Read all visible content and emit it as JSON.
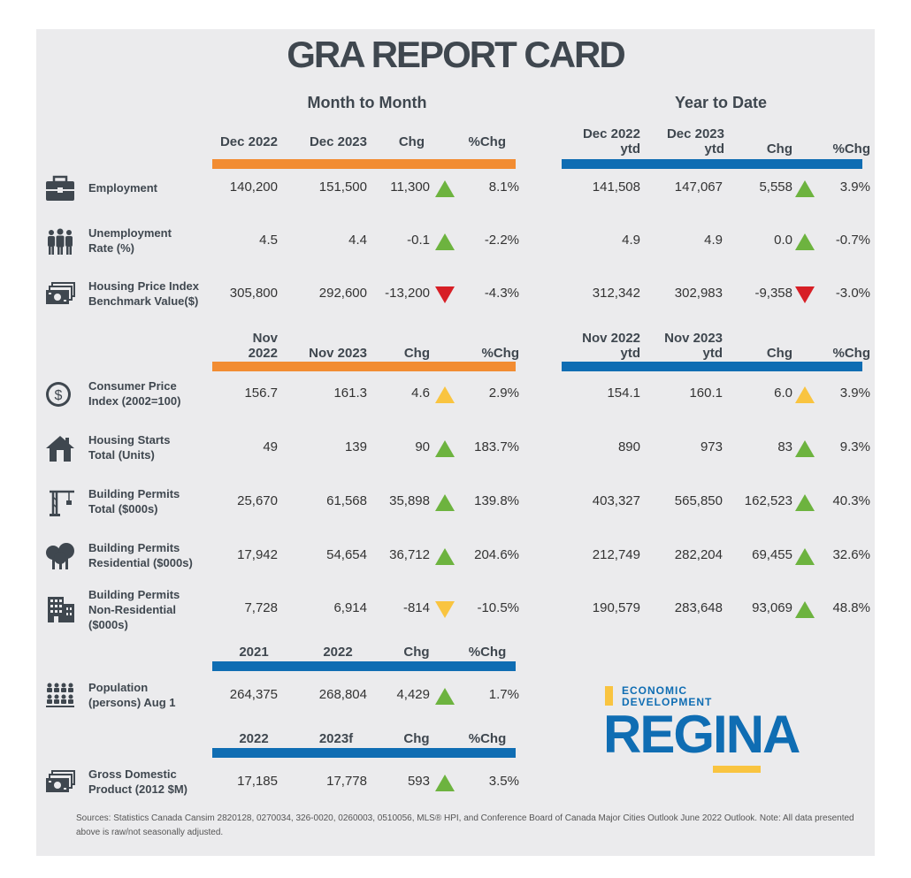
{
  "title": "GRA REPORT CARD",
  "sections": {
    "monthly": "Month to Month",
    "ytd": "Year to Date"
  },
  "colors": {
    "orange": "#f28c32",
    "blue": "#0f6db3",
    "up": "#6db33f",
    "down": "#d71f26",
    "flat": "#f9c440"
  },
  "header1": {
    "mm": [
      "Dec 2022",
      "Dec 2023",
      "Chg",
      "%Chg"
    ],
    "ytd": [
      [
        "Dec 2022",
        "ytd"
      ],
      [
        "Dec 2023",
        "ytd"
      ],
      "Chg",
      "%Chg"
    ]
  },
  "header2": {
    "mm": [
      [
        "Nov",
        "2022"
      ],
      "Nov 2023",
      "Chg",
      "%Chg"
    ],
    "ytd": [
      [
        "Nov 2022",
        "ytd"
      ],
      [
        "Nov 2023",
        "ytd"
      ],
      "Chg",
      "%Chg"
    ]
  },
  "header3": [
    "2021",
    "2022",
    "Chg",
    "%Chg"
  ],
  "header4": [
    "2022",
    "2023f",
    "Chg",
    "%Chg"
  ],
  "rows": [
    {
      "icon": "briefcase-icon",
      "label": [
        "Employment"
      ],
      "mm": [
        "140,200",
        "151,500",
        "11,300",
        "8.1%"
      ],
      "mm_trend": "up-green",
      "ytd": [
        "141,508",
        "147,067",
        "5,558",
        "3.9%"
      ],
      "ytd_trend": "up-green"
    },
    {
      "icon": "people-icon",
      "label": [
        "Unemployment",
        "Rate (%)"
      ],
      "mm": [
        "4.5",
        "4.4",
        "-0.1",
        "-2.2%"
      ],
      "mm_trend": "up-green",
      "ytd": [
        "4.9",
        "4.9",
        "0.0",
        "-0.7%"
      ],
      "ytd_trend": "up-green"
    },
    {
      "icon": "money-icon",
      "label": [
        "Housing Price Index",
        "Benchmark Value($)"
      ],
      "mm": [
        "305,800",
        "292,600",
        "-13,200",
        "-4.3%"
      ],
      "mm_trend": "down-red",
      "ytd": [
        "312,342",
        "302,983",
        "-9,358",
        "-3.0%"
      ],
      "ytd_trend": "down-red"
    },
    {
      "icon": "dollar-coin-icon",
      "label": [
        "Consumer Price",
        "Index (2002=100)"
      ],
      "mm": [
        "156.7",
        "161.3",
        "4.6",
        "2.9%"
      ],
      "mm_trend": "up-yellow",
      "ytd": [
        "154.1",
        "160.1",
        "6.0",
        "3.9%"
      ],
      "ytd_trend": "up-yellow"
    },
    {
      "icon": "house-icon",
      "label": [
        "Housing Starts",
        "Total (Units)"
      ],
      "mm": [
        "49",
        "139",
        "90",
        "183.7%"
      ],
      "mm_trend": "up-green",
      "ytd": [
        "890",
        "973",
        "83",
        "9.3%"
      ],
      "ytd_trend": "up-green"
    },
    {
      "icon": "crane-icon",
      "label": [
        "Building Permits",
        "Total ($000s)"
      ],
      "mm": [
        "25,670",
        "61,568",
        "35,898",
        "139.8%"
      ],
      "mm_trend": "up-green",
      "ytd": [
        "403,327",
        "565,850",
        "162,523",
        "40.3%"
      ],
      "ytd_trend": "up-green"
    },
    {
      "icon": "trees-icon",
      "label": [
        "Building Permits",
        "Residential ($000s)"
      ],
      "mm": [
        "17,942",
        "54,654",
        "36,712",
        "204.6%"
      ],
      "mm_trend": "up-green",
      "ytd": [
        "212,749",
        "282,204",
        "69,455",
        "32.6%"
      ],
      "ytd_trend": "up-green"
    },
    {
      "icon": "office-building-icon",
      "label": [
        "Building Permits",
        "Non-Residential",
        "($000s)"
      ],
      "mm": [
        "7,728",
        "6,914",
        "-814",
        "-10.5%"
      ],
      "mm_trend": "down-yellow",
      "ytd": [
        "190,579",
        "283,648",
        "93,069",
        "48.8%"
      ],
      "ytd_trend": "up-green"
    },
    {
      "icon": "population-icon",
      "label": [
        "Population",
        "(persons) Aug 1"
      ],
      "mm": [
        "264,375",
        "268,804",
        "4,429",
        "1.7%"
      ],
      "mm_trend": "up-green"
    },
    {
      "icon": "money-icon",
      "label": [
        "Gross Domestic",
        "Product (2012 $M)"
      ],
      "mm": [
        "17,185",
        "17,778",
        "593",
        "3.5%"
      ],
      "mm_trend": "up-green"
    }
  ],
  "logo": {
    "line1": "ECONOMIC",
    "line2": "DEVELOPMENT",
    "name": "REGINA"
  },
  "sources": "Sources: Statistics Canada Cansim 2820128, 0270034, 326-0020, 0260003, 0510056, MLS® HPI, and Conference Board of Canada Major Cities Outlook June 2022 Outlook. Note: All data presented above is raw/not seasonally adjusted."
}
